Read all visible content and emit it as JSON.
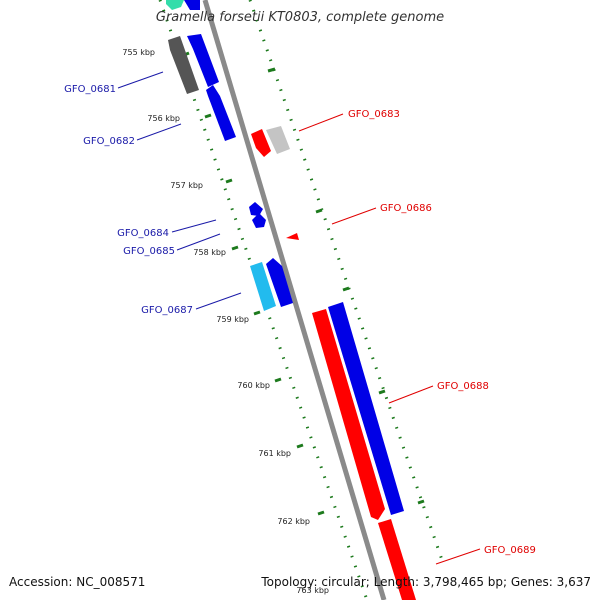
{
  "title": "Gramella forsetii KT0803, complete genome",
  "footer": {
    "accession": "Accession: NC_008571",
    "stats": "Topology: circular; Length: 3,798,465 bp; Genes: 3,637"
  },
  "colors": {
    "background": "#ffffff",
    "backbone": "#8a8a8a",
    "tick_green": "#1d7a1d",
    "forward_red": "#ff0000",
    "reverse_blue": "#0000e6",
    "label_blue": "#1a1aa8",
    "label_red": "#e00000",
    "dark_gray": "#555555",
    "light_gray": "#c4c4c4",
    "cyan": "#22bbee",
    "teal": "#33ddaa"
  },
  "kbp_labels": [
    "755 kbp",
    "756 kbp",
    "757 kbp",
    "758 kbp",
    "759 kbp",
    "760 kbp",
    "761 kbp",
    "762 kbp"
  ],
  "kbp_partial": "763 kbp",
  "genes": [
    {
      "id": "GFO_0681",
      "side": "left"
    },
    {
      "id": "GFO_0682",
      "side": "left"
    },
    {
      "id": "GFO_0683",
      "side": "right"
    },
    {
      "id": "GFO_0684",
      "side": "left"
    },
    {
      "id": "GFO_0685",
      "side": "left"
    },
    {
      "id": "GFO_0686",
      "side": "right"
    },
    {
      "id": "GFO_0687",
      "side": "left"
    },
    {
      "id": "GFO_0688",
      "side": "right"
    },
    {
      "id": "GFO_0689",
      "side": "right"
    }
  ]
}
